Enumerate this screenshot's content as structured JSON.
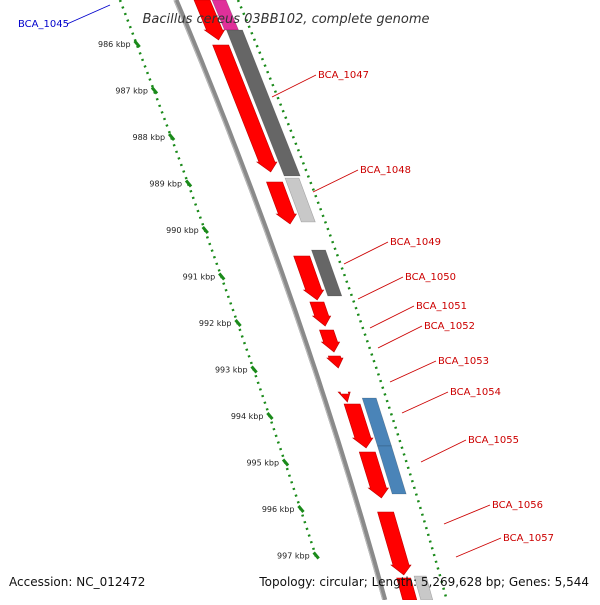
{
  "title": "Bacillus cereus 03BB102, complete genome",
  "footer": {
    "accession": "Accession: NC_012472",
    "summary": "Topology: circular; Length: 5,269,628 bp; Genes: 5,544"
  },
  "kbp_ticks": [
    "986 kbp",
    "987 kbp",
    "988 kbp",
    "989 kbp",
    "990 kbp",
    "991 kbp",
    "992 kbp",
    "993 kbp",
    "994 kbp",
    "995 kbp",
    "996 kbp",
    "997 kbp"
  ],
  "gene_labels": [
    {
      "name": "BCA_1045",
      "color": "blue"
    },
    {
      "name": "BCA_1047",
      "color": "red"
    },
    {
      "name": "BCA_1048",
      "color": "red"
    },
    {
      "name": "BCA_1049",
      "color": "red"
    },
    {
      "name": "BCA_1050",
      "color": "red"
    },
    {
      "name": "BCA_1051",
      "color": "red"
    },
    {
      "name": "BCA_1052",
      "color": "red"
    },
    {
      "name": "BCA_1053",
      "color": "red"
    },
    {
      "name": "BCA_1054",
      "color": "red"
    },
    {
      "name": "BCA_1055",
      "color": "red"
    },
    {
      "name": "BCA_1056",
      "color": "red"
    },
    {
      "name": "BCA_1057",
      "color": "red"
    }
  ],
  "colors": {
    "cds": "#ff0000",
    "cds_dark": "#c00000",
    "gray_dark": "#666666",
    "gray_light": "#c8c8c8",
    "blue": "#4a84b8",
    "magenta": "#e0309a",
    "tick_green": "#1a8a1a",
    "backbone": "#8a8a8a"
  }
}
